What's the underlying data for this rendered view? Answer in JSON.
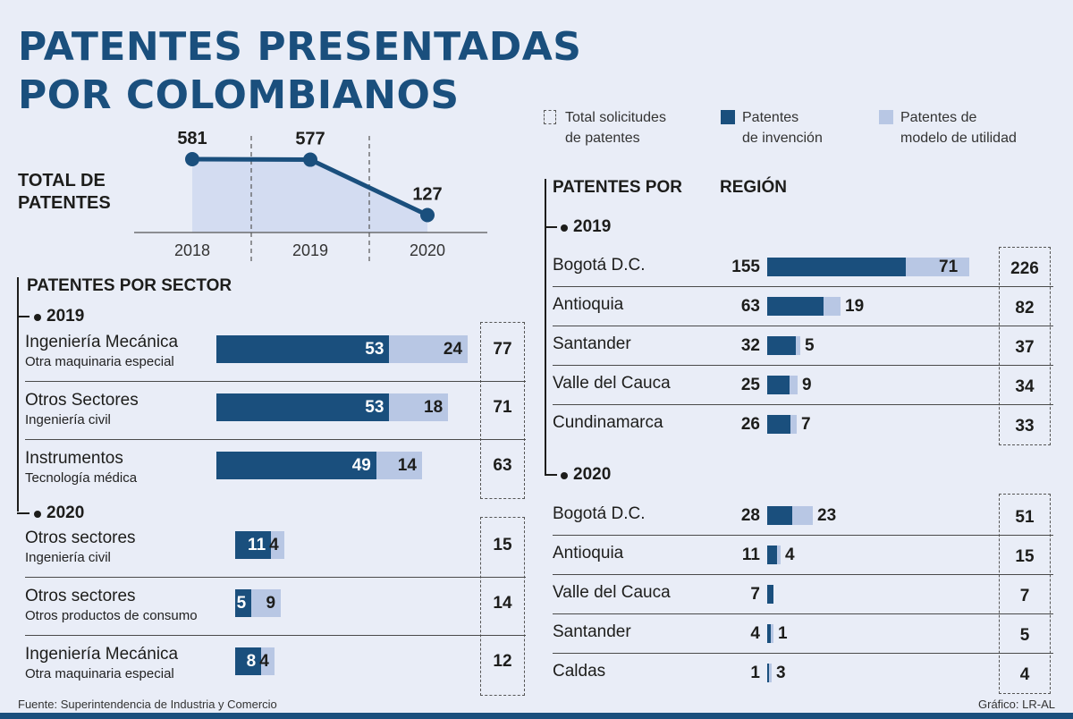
{
  "title": "PATENTES PRESENTADAS\nPOR COLOMBIANOS",
  "legend": {
    "total": "Total solicitudes\nde patentes",
    "invention": "Patentes\nde invención",
    "utility": "Patentes de\nmodelo de utilidad"
  },
  "colors": {
    "invention": "#1a4f7d",
    "utility": "#b8c7e4",
    "background": "#e9edf7",
    "text": "#1d1d1b"
  },
  "chart_data": [
    {
      "type": "area",
      "title": "TOTAL DE\nPATENTES",
      "x": [
        "2018",
        "2019",
        "2020"
      ],
      "values": [
        581,
        577,
        127
      ],
      "labels": [
        "581",
        "577",
        "127"
      ]
    },
    {
      "type": "bar",
      "title": "PATENTES POR SECTOR",
      "groups": [
        {
          "year": "2019",
          "rows": [
            {
              "name": "Ingeniería Mecánica",
              "sub": "Otra maquinaria especial",
              "invention": 53,
              "utility": 24,
              "total": 77
            },
            {
              "name": "Otros Sectores",
              "sub": "Ingeniería civil",
              "invention": 53,
              "utility": 18,
              "total": 71
            },
            {
              "name": "Instrumentos",
              "sub": "Tecnología médica",
              "invention": 49,
              "utility": 14,
              "total": 63
            }
          ]
        },
        {
          "year": "2020",
          "rows": [
            {
              "name": "Otros sectores",
              "sub": "Ingeniería civil",
              "invention": 11,
              "utility": 4,
              "total": 15
            },
            {
              "name": "Otros sectores",
              "sub": "Otros productos de consumo",
              "invention": 5,
              "utility": 9,
              "total": 14
            },
            {
              "name": "Ingeniería Mecánica",
              "sub": "Otra maquinaria especial",
              "invention": 8,
              "utility": 4,
              "total": 12
            }
          ]
        }
      ]
    },
    {
      "type": "bar",
      "title_a": "PATENTES POR",
      "title_b": "REGIÓN",
      "groups": [
        {
          "year": "2019",
          "rows": [
            {
              "name": "Bogotá D.C.",
              "invention": 155,
              "utility": 71,
              "total": 226
            },
            {
              "name": "Antioquia",
              "invention": 63,
              "utility": 19,
              "total": 82
            },
            {
              "name": "Santander",
              "invention": 32,
              "utility": 5,
              "total": 37
            },
            {
              "name": "Valle del Cauca",
              "invention": 25,
              "utility": 9,
              "total": 34
            },
            {
              "name": "Cundinamarca",
              "invention": 26,
              "utility": 7,
              "total": 33
            }
          ]
        },
        {
          "year": "2020",
          "rows": [
            {
              "name": "Bogotá D.C.",
              "invention": 28,
              "utility": 23,
              "total": 51
            },
            {
              "name": "Antioquia",
              "invention": 11,
              "utility": 4,
              "total": 15
            },
            {
              "name": "Valle del Cauca",
              "invention": 7,
              "utility": null,
              "total": 7
            },
            {
              "name": "Santander",
              "invention": 4,
              "utility": 1,
              "total": 5
            },
            {
              "name": "Caldas",
              "invention": 1,
              "utility": 3,
              "total": 4
            }
          ]
        }
      ]
    }
  ],
  "footer": {
    "source": "Fuente: Superintendencia de Industria y Comercio",
    "credit": "Gráfico: LR-AL"
  }
}
